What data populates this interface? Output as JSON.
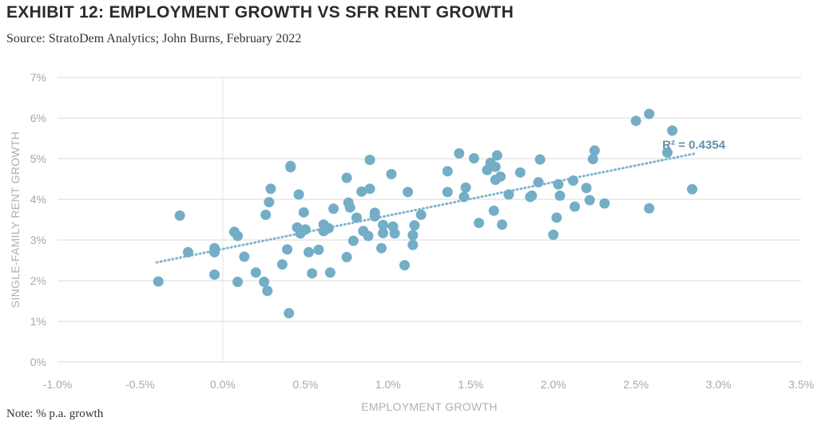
{
  "header": {
    "title": "EXHIBIT 12: EMPLOYMENT GROWTH VS SFR RENT GROWTH",
    "source": "Source: StratoDem Analytics; John Burns, February 2022"
  },
  "footer": {
    "note": "Note: % p.a. growth"
  },
  "colors": {
    "point": "#74adc6",
    "trendline": "#7fb4cc",
    "grid": "#d9d9d9",
    "zero_line": "#e3e3e3",
    "annotation": "#5f8fa8"
  },
  "chart_data": {
    "type": "scatter",
    "title": "EXHIBIT 12: EMPLOYMENT GROWTH VS SFR RENT GROWTH",
    "xlabel": "EMPLOYMENT GROWTH",
    "ylabel": "SINGLE-FAMILY RENT GROWTH",
    "xlim": [
      -1.0,
      3.5
    ],
    "ylim": [
      0,
      7
    ],
    "x_ticks": [
      -1.0,
      -0.5,
      0.0,
      0.5,
      1.0,
      1.5,
      2.0,
      2.5,
      3.0,
      3.5
    ],
    "x_tick_labels": [
      "-1.0%",
      "-0.5%",
      "0.0%",
      "0.5%",
      "1.0%",
      "1.5%",
      "2.0%",
      "2.5%",
      "3.0%",
      "3.5%"
    ],
    "y_ticks": [
      0,
      1,
      2,
      3,
      4,
      5,
      6,
      7
    ],
    "y_tick_labels": [
      "0%",
      "1%",
      "2%",
      "3%",
      "4%",
      "5%",
      "6%",
      "7%"
    ],
    "grid": "horizontal",
    "annotation": {
      "text": "R² = 0.4354",
      "x": 2.85,
      "y": 5.25
    },
    "trendline": {
      "x": [
        -0.4,
        2.85
      ],
      "y": [
        2.45,
        5.12
      ]
    },
    "points": [
      [
        -0.39,
        1.98
      ],
      [
        -0.26,
        3.6
      ],
      [
        -0.21,
        2.7
      ],
      [
        -0.05,
        2.15
      ],
      [
        -0.05,
        2.7
      ],
      [
        -0.05,
        2.8
      ],
      [
        0.07,
        3.2
      ],
      [
        0.09,
        3.1
      ],
      [
        0.09,
        1.97
      ],
      [
        0.13,
        2.59
      ],
      [
        0.2,
        2.2
      ],
      [
        0.25,
        1.97
      ],
      [
        0.26,
        3.62
      ],
      [
        0.27,
        1.75
      ],
      [
        0.28,
        3.93
      ],
      [
        0.29,
        4.26
      ],
      [
        0.36,
        2.4
      ],
      [
        0.39,
        2.77
      ],
      [
        0.4,
        1.2
      ],
      [
        0.41,
        4.79
      ],
      [
        0.41,
        4.82
      ],
      [
        0.45,
        3.31
      ],
      [
        0.46,
        4.12
      ],
      [
        0.47,
        3.16
      ],
      [
        0.49,
        3.68
      ],
      [
        0.5,
        3.26
      ],
      [
        0.52,
        2.7
      ],
      [
        0.54,
        2.18
      ],
      [
        0.58,
        2.76
      ],
      [
        0.61,
        3.22
      ],
      [
        0.61,
        3.38
      ],
      [
        0.64,
        3.29
      ],
      [
        0.65,
        2.2
      ],
      [
        0.67,
        3.77
      ],
      [
        0.75,
        4.53
      ],
      [
        0.75,
        2.58
      ],
      [
        0.76,
        3.92
      ],
      [
        0.77,
        3.8
      ],
      [
        0.79,
        2.98
      ],
      [
        0.81,
        3.55
      ],
      [
        0.84,
        4.19
      ],
      [
        0.85,
        3.22
      ],
      [
        0.88,
        3.1
      ],
      [
        0.89,
        4.97
      ],
      [
        0.89,
        4.26
      ],
      [
        0.92,
        3.58
      ],
      [
        0.92,
        3.67
      ],
      [
        0.96,
        2.8
      ],
      [
        0.97,
        3.37
      ],
      [
        0.97,
        3.17
      ],
      [
        1.02,
        4.62
      ],
      [
        1.03,
        3.33
      ],
      [
        1.04,
        3.16
      ],
      [
        1.1,
        2.38
      ],
      [
        1.12,
        4.18
      ],
      [
        1.15,
        2.88
      ],
      [
        1.15,
        3.12
      ],
      [
        1.16,
        3.36
      ],
      [
        1.2,
        3.62
      ],
      [
        1.36,
        4.69
      ],
      [
        1.36,
        4.18
      ],
      [
        1.43,
        5.13
      ],
      [
        1.46,
        4.06
      ],
      [
        1.47,
        4.29
      ],
      [
        1.52,
        5.01
      ],
      [
        1.55,
        3.42
      ],
      [
        1.6,
        4.72
      ],
      [
        1.62,
        4.9
      ],
      [
        1.64,
        3.72
      ],
      [
        1.65,
        4.48
      ],
      [
        1.65,
        4.8
      ],
      [
        1.66,
        5.08
      ],
      [
        1.68,
        4.56
      ],
      [
        1.69,
        3.38
      ],
      [
        1.73,
        4.12
      ],
      [
        1.8,
        4.66
      ],
      [
        1.86,
        4.06
      ],
      [
        1.87,
        4.09
      ],
      [
        1.91,
        4.42
      ],
      [
        1.92,
        4.98
      ],
      [
        2.0,
        3.13
      ],
      [
        2.02,
        3.55
      ],
      [
        2.03,
        4.37
      ],
      [
        2.04,
        4.09
      ],
      [
        2.12,
        4.46
      ],
      [
        2.13,
        3.82
      ],
      [
        2.2,
        4.28
      ],
      [
        2.22,
        3.98
      ],
      [
        2.24,
        4.99
      ],
      [
        2.25,
        5.2
      ],
      [
        2.31,
        3.9
      ],
      [
        2.5,
        5.93
      ],
      [
        2.58,
        6.1
      ],
      [
        2.58,
        3.78
      ],
      [
        2.69,
        5.15
      ],
      [
        2.72,
        5.69
      ],
      [
        2.84,
        4.25
      ]
    ]
  }
}
